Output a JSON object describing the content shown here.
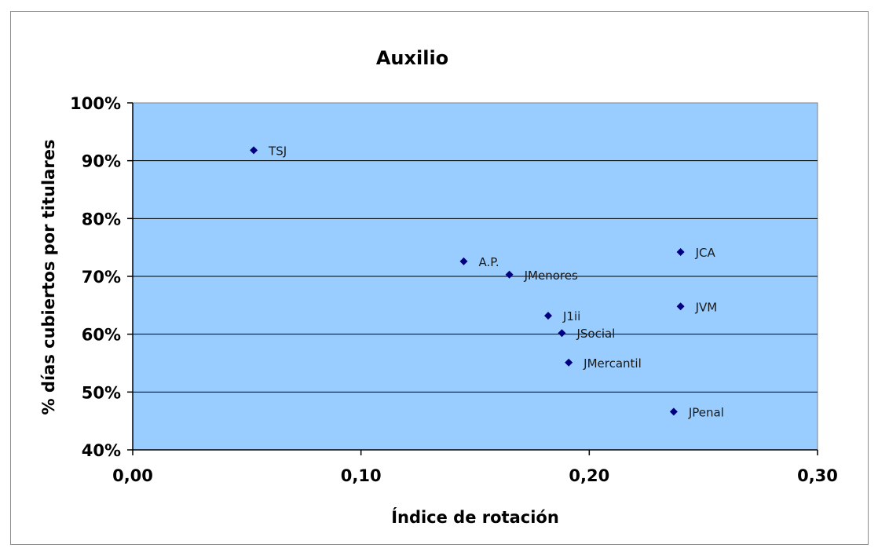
{
  "chart_data": {
    "type": "scatter",
    "title": "Auxilio",
    "xlabel": "Índice de rotación",
    "ylabel": "% días cubiertos por titulares",
    "xlim": [
      0,
      0.3
    ],
    "ylim": [
      0.4,
      1.0
    ],
    "x_ticks": [
      "0,00",
      "0,10",
      "0,20",
      "0,30"
    ],
    "y_ticks": [
      "40%",
      "50%",
      "60%",
      "70%",
      "80%",
      "90%",
      "100%"
    ],
    "grid": "horizontal",
    "legend": "none",
    "colors": {
      "plot_background": "#99ccff",
      "marker": "#000080",
      "gridline": "#000000"
    },
    "points": [
      {
        "label": "TSJ",
        "x": 0.053,
        "y": 0.918
      },
      {
        "label": "A.P.",
        "x": 0.145,
        "y": 0.726
      },
      {
        "label": "JMenores",
        "x": 0.165,
        "y": 0.703
      },
      {
        "label": "JCA",
        "x": 0.24,
        "y": 0.742
      },
      {
        "label": "JVM",
        "x": 0.24,
        "y": 0.648
      },
      {
        "label": "J1ii",
        "x": 0.182,
        "y": 0.632
      },
      {
        "label": "JSocial",
        "x": 0.188,
        "y": 0.602
      },
      {
        "label": "JMercantil",
        "x": 0.191,
        "y": 0.551
      },
      {
        "label": "JPenal",
        "x": 0.237,
        "y": 0.466
      }
    ]
  }
}
